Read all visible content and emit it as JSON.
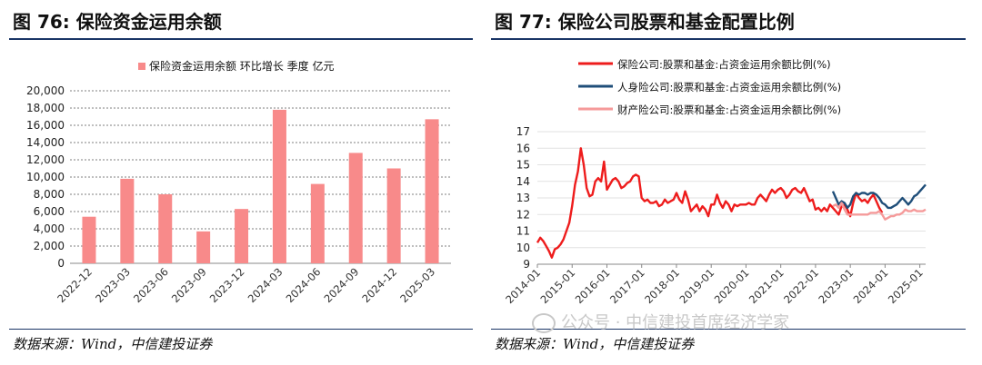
{
  "left": {
    "title": "图 76:  保险资金运用余额",
    "source": "数据来源：Wind，中信建投证券"
  },
  "right": {
    "title": "图 77:  保险公司股票和基金配置比例",
    "source": "数据来源：Wind，中信建投证券"
  },
  "watermark": "公众号 · 中信建投首席经济学家",
  "chart_data": [
    {
      "type": "bar",
      "legend": "保险资金运用余额 环比增长 季度 亿元",
      "legend_position": "top-center",
      "categories": [
        "2022-12",
        "2023-03",
        "2023-06",
        "2023-09",
        "2023-12",
        "2024-03",
        "2024-06",
        "2024-09",
        "2024-12",
        "2025-03"
      ],
      "values": [
        5400,
        9800,
        8000,
        3700,
        6300,
        17800,
        9200,
        12800,
        11000,
        16700
      ],
      "ylim": [
        0,
        20000
      ],
      "yticks": [
        0,
        2000,
        4000,
        6000,
        8000,
        10000,
        12000,
        14000,
        16000,
        18000,
        20000
      ],
      "ytick_labels": [
        "0",
        "2,000",
        "4,000",
        "6,000",
        "8,000",
        "10,000",
        "12,000",
        "14,000",
        "16,000",
        "18,000",
        "20,000"
      ],
      "grid": "horizontal-dashed",
      "color": "#f88a8a"
    },
    {
      "type": "line",
      "ylim": [
        9,
        17
      ],
      "yticks": [
        9,
        10,
        11,
        12,
        13,
        14,
        15,
        16,
        17
      ],
      "xlim": [
        "2014-01",
        "2025-03"
      ],
      "xtick_labels": [
        "2014-01",
        "2015-01",
        "2016-01",
        "2017-01",
        "2018-01",
        "2019-01",
        "2020-01",
        "2021-01",
        "2022-01",
        "2023-01",
        "2024-01",
        "2025-01"
      ],
      "legend_position": "top-left",
      "series": [
        {
          "name": "保险公司:股票和基金:占资金运用余额比例(%)",
          "color": "#ee1c1c",
          "points": [
            [
              "2014-01",
              10.3
            ],
            [
              "2014-02",
              10.6
            ],
            [
              "2014-03",
              10.4
            ],
            [
              "2014-04",
              10.1
            ],
            [
              "2014-05",
              9.8
            ],
            [
              "2014-06",
              9.4
            ],
            [
              "2014-07",
              9.9
            ],
            [
              "2014-08",
              10.0
            ],
            [
              "2014-09",
              10.2
            ],
            [
              "2014-10",
              10.5
            ],
            [
              "2014-11",
              11.0
            ],
            [
              "2014-12",
              11.5
            ],
            [
              "2015-01",
              12.5
            ],
            [
              "2015-02",
              13.8
            ],
            [
              "2015-03",
              14.6
            ],
            [
              "2015-04",
              16.0
            ],
            [
              "2015-05",
              15.0
            ],
            [
              "2015-06",
              13.6
            ],
            [
              "2015-07",
              13.1
            ],
            [
              "2015-08",
              13.2
            ],
            [
              "2015-09",
              14.0
            ],
            [
              "2015-10",
              14.2
            ],
            [
              "2015-11",
              14.0
            ],
            [
              "2015-12",
              15.2
            ],
            [
              "2016-01",
              13.5
            ],
            [
              "2016-02",
              13.8
            ],
            [
              "2016-03",
              14.1
            ],
            [
              "2016-04",
              14.2
            ],
            [
              "2016-05",
              14.0
            ],
            [
              "2016-06",
              13.6
            ],
            [
              "2016-07",
              13.7
            ],
            [
              "2016-08",
              13.9
            ],
            [
              "2016-09",
              14.0
            ],
            [
              "2016-10",
              14.3
            ],
            [
              "2016-11",
              14.4
            ],
            [
              "2016-12",
              14.3
            ],
            [
              "2017-01",
              13.0
            ],
            [
              "2017-02",
              12.8
            ],
            [
              "2017-03",
              12.9
            ],
            [
              "2017-04",
              12.7
            ],
            [
              "2017-05",
              12.7
            ],
            [
              "2017-06",
              12.8
            ],
            [
              "2017-07",
              12.5
            ],
            [
              "2017-08",
              12.6
            ],
            [
              "2017-09",
              12.9
            ],
            [
              "2017-10",
              12.7
            ],
            [
              "2017-11",
              12.8
            ],
            [
              "2017-12",
              12.9
            ],
            [
              "2018-01",
              13.3
            ],
            [
              "2018-02",
              12.9
            ],
            [
              "2018-03",
              12.7
            ],
            [
              "2018-04",
              13.4
            ],
            [
              "2018-05",
              12.9
            ],
            [
              "2018-06",
              12.2
            ],
            [
              "2018-07",
              12.4
            ],
            [
              "2018-08",
              12.6
            ],
            [
              "2018-09",
              12.2
            ],
            [
              "2018-10",
              12.5
            ],
            [
              "2018-11",
              12.3
            ],
            [
              "2018-12",
              11.9
            ],
            [
              "2019-01",
              12.6
            ],
            [
              "2019-02",
              12.6
            ],
            [
              "2019-03",
              13.2
            ],
            [
              "2019-04",
              12.7
            ],
            [
              "2019-05",
              12.4
            ],
            [
              "2019-06",
              12.8
            ],
            [
              "2019-07",
              12.6
            ],
            [
              "2019-08",
              12.2
            ],
            [
              "2019-09",
              12.6
            ],
            [
              "2019-10",
              12.5
            ],
            [
              "2019-11",
              12.6
            ],
            [
              "2019-12",
              12.6
            ],
            [
              "2020-01",
              12.6
            ],
            [
              "2020-02",
              12.7
            ],
            [
              "2020-03",
              12.6
            ],
            [
              "2020-04",
              12.6
            ],
            [
              "2020-05",
              13.0
            ],
            [
              "2020-06",
              13.2
            ],
            [
              "2020-07",
              13.0
            ],
            [
              "2020-08",
              12.8
            ],
            [
              "2020-09",
              13.2
            ],
            [
              "2020-10",
              13.5
            ],
            [
              "2020-11",
              13.3
            ],
            [
              "2020-12",
              13.5
            ],
            [
              "2021-01",
              13.6
            ],
            [
              "2021-02",
              13.4
            ],
            [
              "2021-03",
              13.0
            ],
            [
              "2021-04",
              13.2
            ],
            [
              "2021-05",
              13.5
            ],
            [
              "2021-06",
              13.6
            ],
            [
              "2021-07",
              13.4
            ],
            [
              "2021-08",
              13.3
            ],
            [
              "2021-09",
              13.6
            ],
            [
              "2021-10",
              13.2
            ],
            [
              "2021-11",
              12.8
            ],
            [
              "2021-12",
              12.9
            ],
            [
              "2022-01",
              12.3
            ],
            [
              "2022-02",
              12.4
            ],
            [
              "2022-03",
              12.2
            ],
            [
              "2022-04",
              12.4
            ],
            [
              "2022-05",
              12.2
            ],
            [
              "2022-06",
              12.6
            ],
            [
              "2022-07",
              12.4
            ],
            [
              "2022-08",
              12.2
            ],
            [
              "2022-09",
              12.0
            ],
            [
              "2022-10",
              12.5
            ],
            [
              "2022-11",
              12.6
            ],
            [
              "2022-12",
              12.3
            ],
            [
              "2023-01",
              11.9
            ],
            [
              "2023-02",
              12.7
            ],
            [
              "2023-03",
              13.3
            ],
            [
              "2023-04",
              13.0
            ],
            [
              "2023-05",
              12.8
            ],
            [
              "2023-06",
              12.9
            ],
            [
              "2023-07",
              12.7
            ],
            [
              "2023-08",
              13.0
            ],
            [
              "2023-09",
              13.2
            ],
            [
              "2023-10",
              12.8
            ],
            [
              "2023-11",
              12.4
            ],
            [
              "2023-12",
              12.1
            ]
          ]
        },
        {
          "name": "人身险公司:股票和基金:占资金运用余额比例(%)",
          "color": "#1f4e79",
          "points": [
            [
              "2022-07",
              13.4
            ],
            [
              "2022-08",
              13.0
            ],
            [
              "2022-09",
              12.6
            ],
            [
              "2022-10",
              12.8
            ],
            [
              "2022-11",
              12.7
            ],
            [
              "2022-12",
              12.4
            ],
            [
              "2023-01",
              12.6
            ],
            [
              "2023-02",
              13.1
            ],
            [
              "2023-03",
              13.3
            ],
            [
              "2023-04",
              13.2
            ],
            [
              "2023-05",
              13.3
            ],
            [
              "2023-06",
              13.3
            ],
            [
              "2023-07",
              13.2
            ],
            [
              "2023-08",
              13.3
            ],
            [
              "2023-09",
              13.3
            ],
            [
              "2023-10",
              13.2
            ],
            [
              "2023-11",
              13.0
            ],
            [
              "2023-12",
              12.7
            ],
            [
              "2024-01",
              12.6
            ],
            [
              "2024-02",
              12.4
            ],
            [
              "2024-03",
              12.4
            ],
            [
              "2024-04",
              12.5
            ],
            [
              "2024-05",
              12.6
            ],
            [
              "2024-06",
              12.8
            ],
            [
              "2024-07",
              13.0
            ],
            [
              "2024-08",
              12.8
            ],
            [
              "2024-09",
              12.6
            ],
            [
              "2024-10",
              12.8
            ],
            [
              "2024-11",
              13.1
            ],
            [
              "2024-12",
              13.2
            ],
            [
              "2025-01",
              13.4
            ],
            [
              "2025-02",
              13.6
            ],
            [
              "2025-03",
              13.8
            ]
          ]
        },
        {
          "name": "财产险公司:股票和基金:占资金运用余额比例(%)",
          "color": "#f59a9a",
          "points": [
            [
              "2022-07",
              12.5
            ],
            [
              "2022-08",
              12.6
            ],
            [
              "2022-09",
              12.4
            ],
            [
              "2022-10",
              12.7
            ],
            [
              "2022-11",
              12.3
            ],
            [
              "2022-12",
              12.0
            ],
            [
              "2023-01",
              12.0
            ],
            [
              "2023-02",
              12.0
            ],
            [
              "2023-03",
              12.0
            ],
            [
              "2023-04",
              12.0
            ],
            [
              "2023-05",
              12.0
            ],
            [
              "2023-06",
              12.0
            ],
            [
              "2023-07",
              12.0
            ],
            [
              "2023-08",
              12.1
            ],
            [
              "2023-09",
              12.1
            ],
            [
              "2023-10",
              12.1
            ],
            [
              "2023-11",
              12.2
            ],
            [
              "2023-12",
              12.0
            ],
            [
              "2024-01",
              11.7
            ],
            [
              "2024-02",
              11.8
            ],
            [
              "2024-03",
              11.9
            ],
            [
              "2024-04",
              11.9
            ],
            [
              "2024-05",
              12.0
            ],
            [
              "2024-06",
              12.0
            ],
            [
              "2024-07",
              12.1
            ],
            [
              "2024-08",
              12.3
            ],
            [
              "2024-09",
              12.2
            ],
            [
              "2024-10",
              12.2
            ],
            [
              "2024-11",
              12.3
            ],
            [
              "2024-12",
              12.2
            ],
            [
              "2025-01",
              12.2
            ],
            [
              "2025-02",
              12.2
            ],
            [
              "2025-03",
              12.3
            ]
          ]
        }
      ]
    }
  ]
}
